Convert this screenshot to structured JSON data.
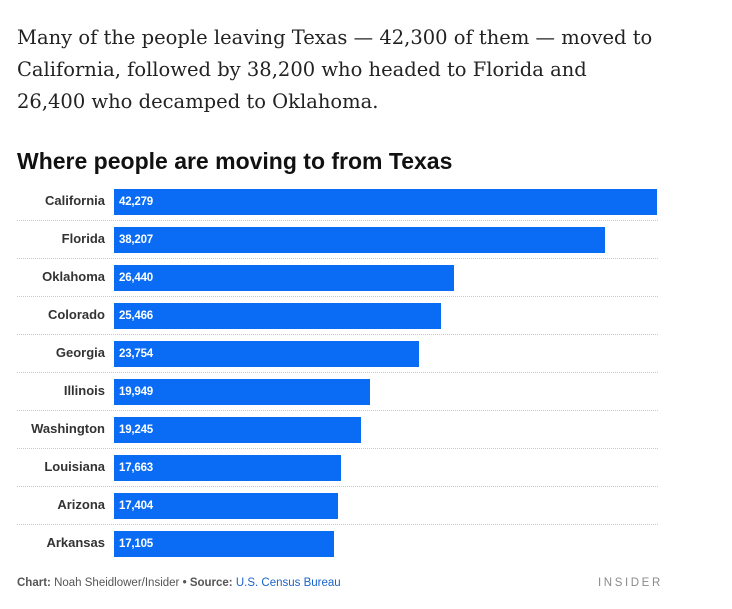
{
  "intro_text": "Many of the people leaving Texas — 42,300 of them — moved to California, followed by 38,200 who headed to Florida and 26,400 who decamped to Oklahoma.",
  "chart_data": {
    "type": "bar",
    "orientation": "horizontal",
    "title": "Where people are moving to from Texas",
    "xlabel": "",
    "ylabel": "",
    "grid": false,
    "bar_color": "#0a6cf5",
    "categories": [
      "California",
      "Florida",
      "Oklahoma",
      "Colorado",
      "Georgia",
      "Illinois",
      "Washington",
      "Louisiana",
      "Arizona",
      "Arkansas"
    ],
    "values": [
      42279,
      38207,
      26440,
      25466,
      23754,
      19949,
      19245,
      17663,
      17404,
      17105
    ],
    "value_labels": [
      "42,279",
      "38,207",
      "26,440",
      "25,466",
      "23,754",
      "19,949",
      "19,245",
      "17,663",
      "17,404",
      "17,105"
    ]
  },
  "footer": {
    "chart_label": "Chart:",
    "chart_credit": "Noah Sheidlower/Insider",
    "separator": "•",
    "source_label": "Source:",
    "source_link": "U.S. Census Bureau",
    "brand": "INSIDER"
  }
}
